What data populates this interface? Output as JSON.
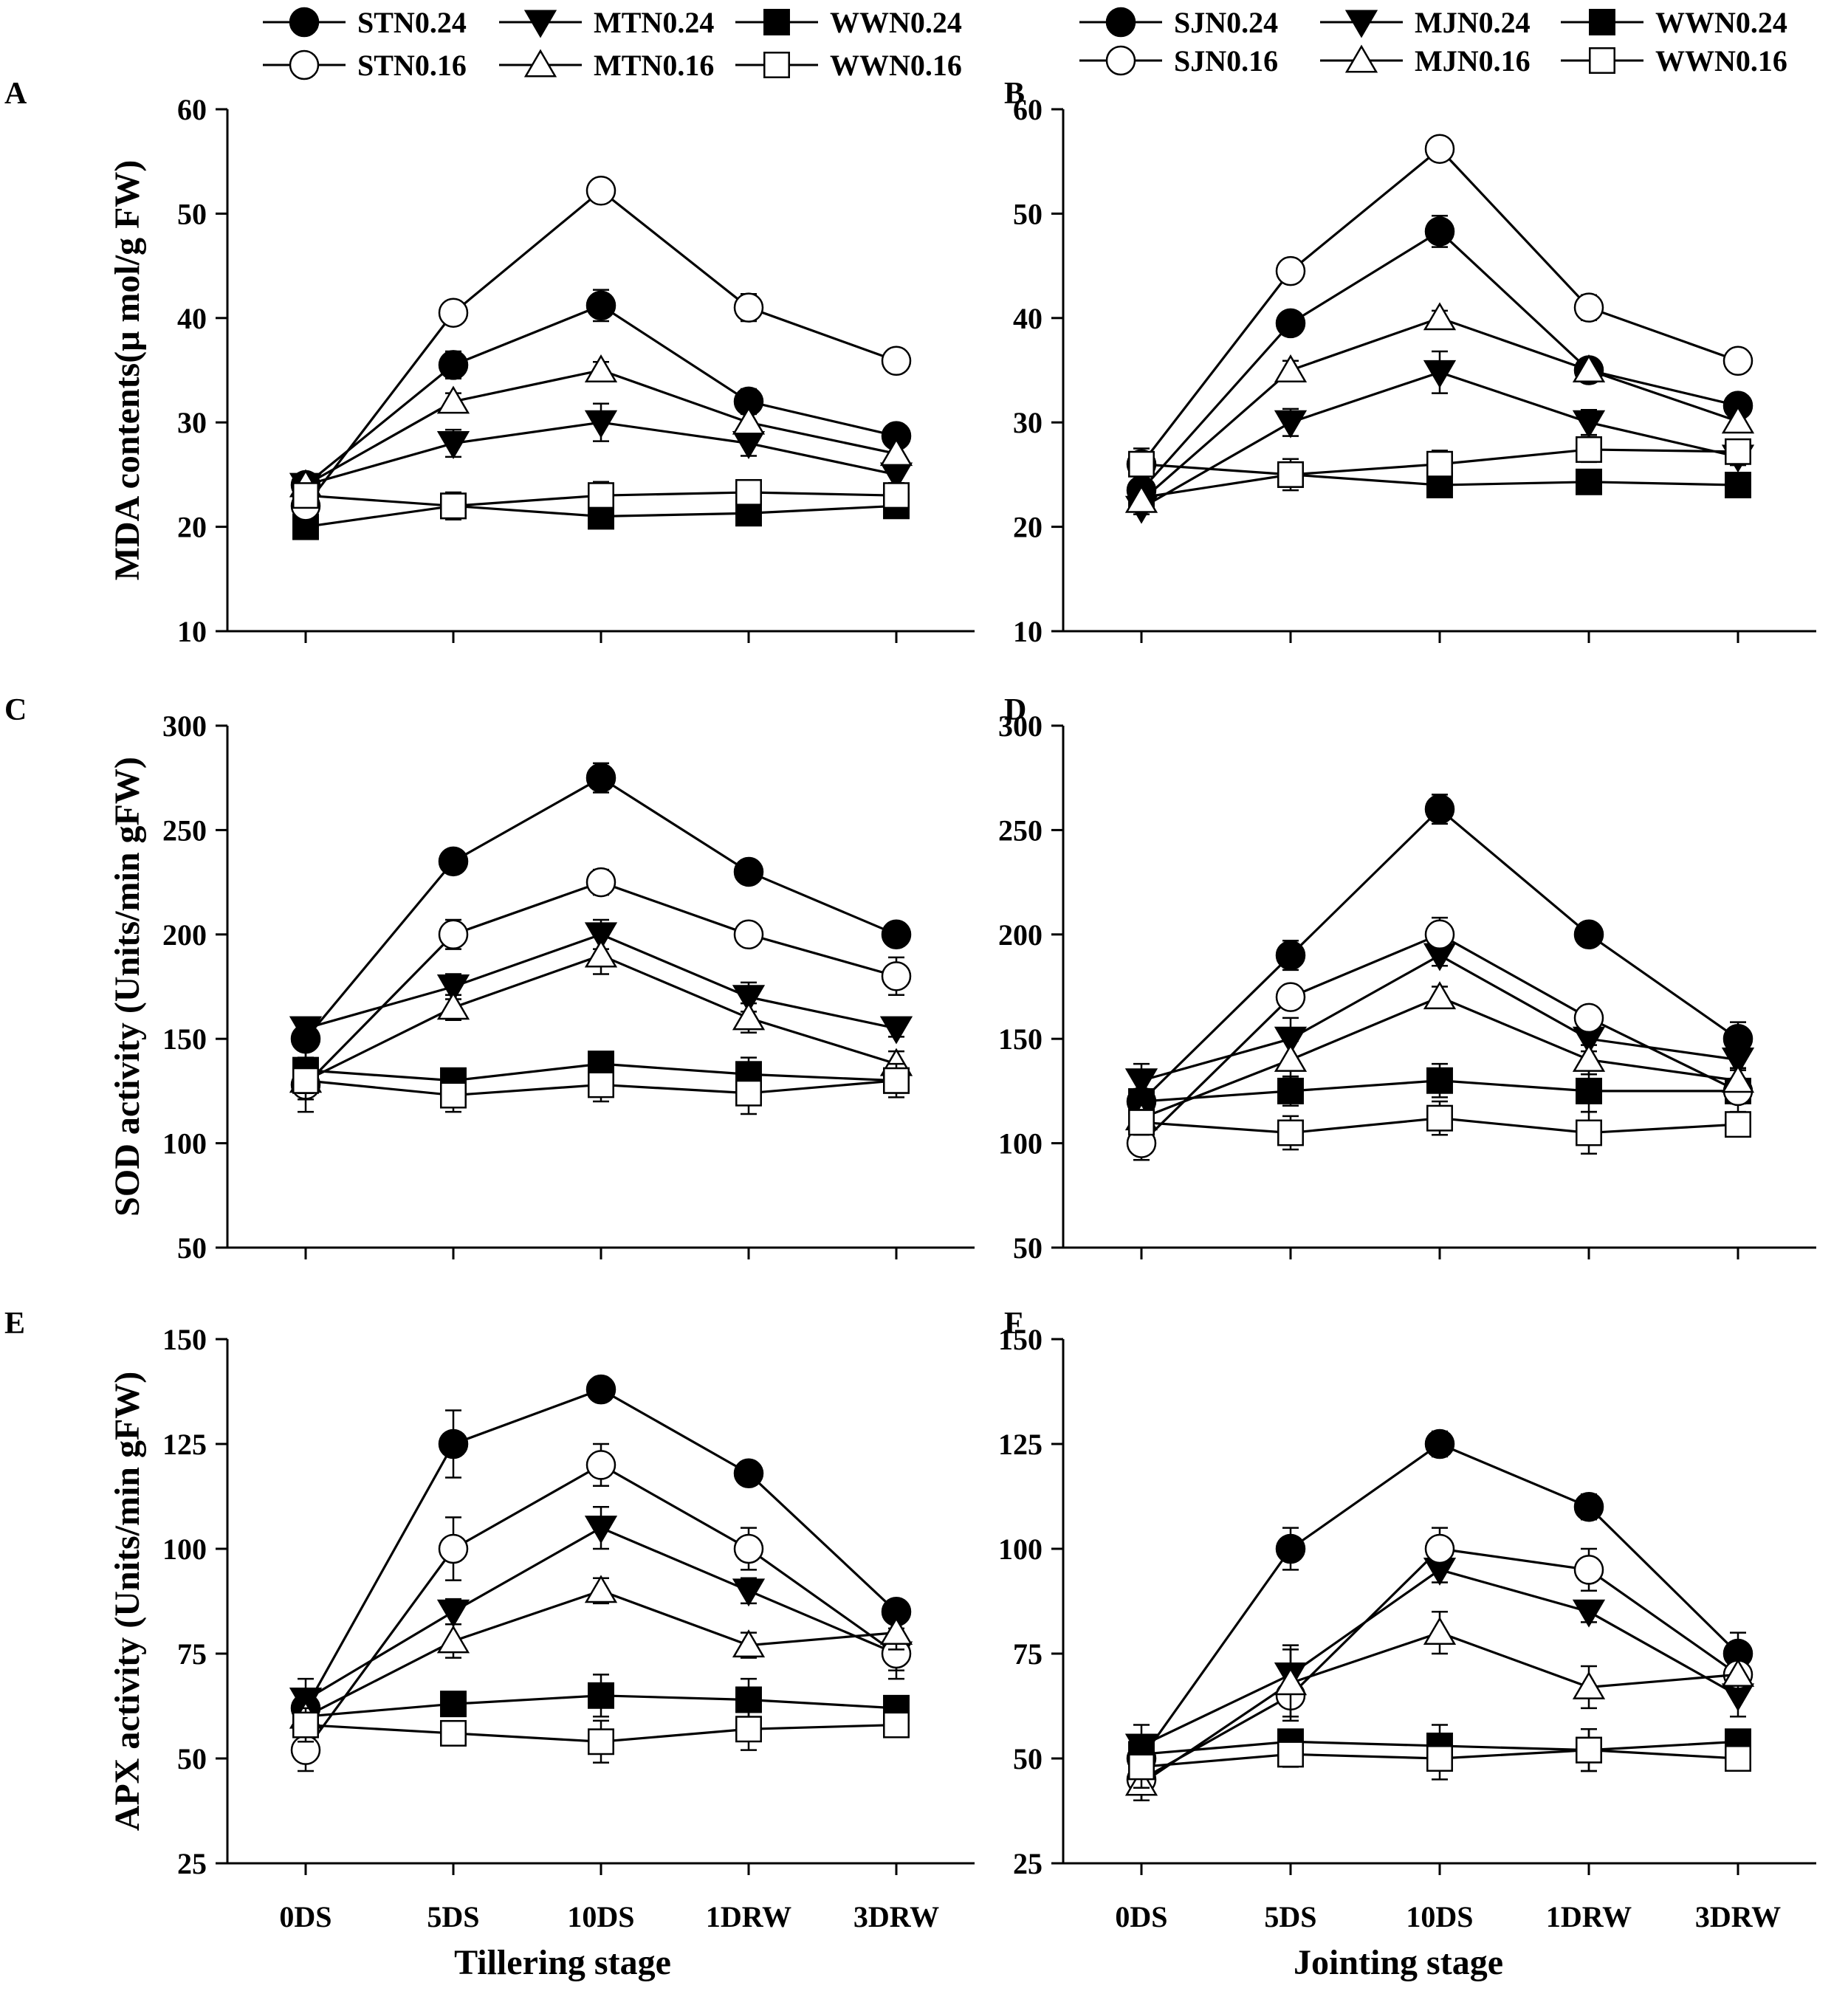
{
  "legends": {
    "tillering": [
      {
        "name": "STN0.24",
        "marker": "circle",
        "filled": true
      },
      {
        "name": "MTN0.24",
        "marker": "triangle-down",
        "filled": true
      },
      {
        "name": "WWN0.24",
        "marker": "square",
        "filled": true
      },
      {
        "name": "STN0.16",
        "marker": "circle",
        "filled": false
      },
      {
        "name": "MTN0.16",
        "marker": "triangle-up",
        "filled": false
      },
      {
        "name": "WWN0.16",
        "marker": "square",
        "filled": false
      }
    ],
    "jointing": [
      {
        "name": "SJN0.24",
        "marker": "circle",
        "filled": true
      },
      {
        "name": "MJN0.24",
        "marker": "triangle-down",
        "filled": true
      },
      {
        "name": "WWN0.24",
        "marker": "square",
        "filled": true
      },
      {
        "name": "SJN0.16",
        "marker": "circle",
        "filled": false
      },
      {
        "name": "MJN0.16",
        "marker": "triangle-up",
        "filled": false
      },
      {
        "name": "WWN0.16",
        "marker": "square",
        "filled": false
      }
    ]
  },
  "x_titles": {
    "tillering": "Tillering stage",
    "jointing": "Jointing stage"
  },
  "chart_data": [
    {
      "panel": "A",
      "type": "line",
      "legend": "tillering",
      "categories": [
        "0DS",
        "5DS",
        "10DS",
        "1DRW",
        "3DRW"
      ],
      "ylabel": "MDA contents(μ mol/g FW)",
      "ylim": [
        10,
        60
      ],
      "yticks": [
        10,
        20,
        30,
        40,
        50,
        60
      ],
      "series": [
        {
          "name": "STN0.24",
          "values": [
            24,
            35.5,
            41.2,
            32,
            28.7
          ],
          "errors": [
            0.8,
            1.3,
            1.5,
            1.2,
            0.9
          ]
        },
        {
          "name": "MTN0.24",
          "values": [
            24,
            28,
            30,
            28,
            25
          ],
          "errors": [
            0.8,
            1.3,
            1.8,
            1.2,
            0.8
          ]
        },
        {
          "name": "WWN0.24",
          "values": [
            20,
            22,
            21,
            21.3,
            22
          ],
          "errors": [
            0.5,
            0.8,
            0.6,
            0.9,
            0.5
          ]
        },
        {
          "name": "STN0.16",
          "values": [
            22,
            40.5,
            52.2,
            41,
            35.9
          ],
          "errors": [
            0.8,
            1.0,
            0.8,
            1.3,
            0.6
          ]
        },
        {
          "name": "MTN0.16",
          "values": [
            24,
            32,
            35,
            30,
            27
          ],
          "errors": [
            0.6,
            0.8,
            0.8,
            0.9,
            0.7
          ]
        },
        {
          "name": "WWN0.16",
          "values": [
            23,
            22,
            23,
            23.3,
            23
          ],
          "errors": [
            0.8,
            1.3,
            1.3,
            1.0,
            0.8
          ]
        }
      ]
    },
    {
      "panel": "B",
      "type": "line",
      "legend": "jointing",
      "categories": [
        "0DS",
        "5DS",
        "10DS",
        "1DRW",
        "3DRW"
      ],
      "ylabel": "",
      "ylim": [
        10,
        60
      ],
      "yticks": [
        10,
        20,
        30,
        40,
        50,
        60
      ],
      "series": [
        {
          "name": "SJN0.24",
          "values": [
            23.5,
            39.5,
            48.3,
            35,
            31.6
          ],
          "errors": [
            0.8,
            1.0,
            1.5,
            1.0,
            0.8
          ]
        },
        {
          "name": "MJN0.24",
          "values": [
            21.8,
            30,
            34.8,
            30,
            26.7
          ],
          "errors": [
            0.6,
            1.3,
            2.0,
            1.2,
            0.8
          ]
        },
        {
          "name": "WWN0.24",
          "values": [
            22.8,
            25,
            24,
            24.3,
            24
          ],
          "errors": [
            0.5,
            0.8,
            0.6,
            1.0,
            0.5
          ]
        },
        {
          "name": "SJN0.16",
          "values": [
            26,
            44.5,
            56.2,
            41,
            35.9
          ],
          "errors": [
            0.8,
            0.9,
            0.8,
            1.2,
            0.6
          ]
        },
        {
          "name": "MJN0.16",
          "values": [
            22.5,
            35,
            40,
            35,
            30.1
          ],
          "errors": [
            0.6,
            0.9,
            0.7,
            0.8,
            0.7
          ]
        },
        {
          "name": "WWN0.16",
          "values": [
            26,
            25,
            26,
            27.4,
            27.2
          ],
          "errors": [
            1.5,
            1.5,
            1.3,
            1.2,
            0.8
          ]
        }
      ]
    },
    {
      "panel": "C",
      "type": "line",
      "legend": "tillering",
      "categories": [
        "0DS",
        "5DS",
        "10DS",
        "1DRW",
        "3DRW"
      ],
      "ylabel": "SOD activity (Units/min gFW)",
      "ylim": [
        50,
        300
      ],
      "yticks": [
        50,
        100,
        150,
        200,
        250,
        300
      ],
      "series": [
        {
          "name": "STN0.24",
          "values": [
            150,
            235,
            275,
            230,
            200
          ],
          "errors": [
            10,
            4,
            7,
            4,
            3
          ]
        },
        {
          "name": "MTN0.24",
          "values": [
            155,
            175,
            200,
            170,
            155
          ],
          "errors": [
            4,
            6,
            7,
            7,
            4
          ]
        },
        {
          "name": "WWN0.24",
          "values": [
            135,
            130,
            138,
            133,
            130
          ],
          "errors": [
            6,
            4,
            5,
            8,
            4
          ]
        },
        {
          "name": "STN0.16",
          "values": [
            128,
            200,
            225,
            200,
            180
          ],
          "errors": [
            7,
            7,
            6,
            4,
            9
          ]
        },
        {
          "name": "MTN0.16",
          "values": [
            130,
            165,
            190,
            160,
            138
          ],
          "errors": [
            6,
            6,
            9,
            7,
            6
          ]
        },
        {
          "name": "WWN0.16",
          "values": [
            130,
            123,
            128,
            124,
            130
          ],
          "errors": [
            15,
            8,
            8,
            10,
            8
          ]
        }
      ]
    },
    {
      "panel": "D",
      "type": "line",
      "legend": "jointing",
      "categories": [
        "0DS",
        "5DS",
        "10DS",
        "1DRW",
        "3DRW"
      ],
      "ylabel": "",
      "ylim": [
        50,
        300
      ],
      "yticks": [
        50,
        100,
        150,
        200,
        250,
        300
      ],
      "series": [
        {
          "name": "SJN0.24",
          "values": [
            120,
            190,
            260,
            200,
            150
          ],
          "errors": [
            5,
            7,
            7,
            4,
            8
          ]
        },
        {
          "name": "MJN0.24",
          "values": [
            130,
            150,
            190,
            150,
            140
          ],
          "errors": [
            8,
            10,
            5,
            6,
            4
          ]
        },
        {
          "name": "WWN0.24",
          "values": [
            120,
            125,
            130,
            125,
            125
          ],
          "errors": [
            6,
            7,
            8,
            10,
            10
          ]
        },
        {
          "name": "SJN0.16",
          "values": [
            100,
            170,
            200,
            160,
            125
          ],
          "errors": [
            8,
            5,
            8,
            5,
            6
          ]
        },
        {
          "name": "MJN0.16",
          "values": [
            112,
            140,
            170,
            140,
            130
          ],
          "errors": [
            7,
            9,
            5,
            7,
            5
          ]
        },
        {
          "name": "WWN0.16",
          "values": [
            110,
            105,
            112,
            105,
            109
          ],
          "errors": [
            6,
            8,
            8,
            10,
            5
          ]
        }
      ]
    },
    {
      "panel": "E",
      "type": "line",
      "legend": "tillering",
      "categories": [
        "0DS",
        "5DS",
        "10DS",
        "1DRW",
        "3DRW"
      ],
      "ylabel": "APX activity (Units/min gFW)",
      "ylim": [
        25,
        150
      ],
      "yticks": [
        25,
        50,
        75,
        100,
        125,
        150
      ],
      "series": [
        {
          "name": "STN0.24",
          "values": [
            62,
            125,
            138,
            118,
            85
          ],
          "errors": [
            4,
            8,
            2.5,
            2.5,
            2
          ]
        },
        {
          "name": "MTN0.24",
          "values": [
            64,
            85,
            105,
            90,
            75
          ],
          "errors": [
            5,
            3,
            5,
            3,
            4
          ]
        },
        {
          "name": "WWN0.24",
          "values": [
            60,
            63,
            65,
            64,
            62
          ],
          "errors": [
            3,
            2.5,
            5,
            5,
            2.5
          ]
        },
        {
          "name": "STN0.16",
          "values": [
            52,
            100,
            120,
            100,
            75
          ],
          "errors": [
            5,
            7.5,
            5,
            5,
            6
          ]
        },
        {
          "name": "MTN0.16",
          "values": [
            60,
            78,
            90,
            77,
            80
          ],
          "errors": [
            4,
            4,
            3,
            3,
            4
          ]
        },
        {
          "name": "WWN0.16",
          "values": [
            58,
            56,
            54,
            57,
            58
          ],
          "errors": [
            4,
            2.5,
            5,
            5,
            2.5
          ]
        }
      ]
    },
    {
      "panel": "F",
      "type": "line",
      "legend": "jointing",
      "categories": [
        "0DS",
        "5DS",
        "10DS",
        "1DRW",
        "3DRW"
      ],
      "ylabel": "",
      "ylim": [
        25,
        150
      ],
      "yticks": [
        25,
        50,
        75,
        100,
        125,
        150
      ],
      "series": [
        {
          "name": "SJN0.24",
          "values": [
            50,
            100,
            125,
            110,
            75
          ],
          "errors": [
            4,
            5,
            3,
            3,
            5
          ]
        },
        {
          "name": "MJN0.24",
          "values": [
            53,
            70,
            95,
            85,
            65
          ],
          "errors": [
            5,
            7,
            3,
            2.5,
            5
          ]
        },
        {
          "name": "WWN0.24",
          "values": [
            51,
            54,
            53,
            52,
            54
          ],
          "errors": [
            3,
            2.5,
            5,
            5,
            2.5
          ]
        },
        {
          "name": "SJN0.16",
          "values": [
            45,
            65,
            100,
            95,
            70
          ],
          "errors": [
            5,
            6,
            5,
            5,
            5
          ]
        },
        {
          "name": "MJN0.16",
          "values": [
            44,
            68,
            80,
            67,
            70
          ],
          "errors": [
            4,
            8,
            5,
            5,
            4
          ]
        },
        {
          "name": "WWN0.16",
          "values": [
            48,
            51,
            50,
            52,
            50
          ],
          "errors": [
            5,
            3,
            5,
            5,
            2.5
          ]
        }
      ]
    }
  ]
}
